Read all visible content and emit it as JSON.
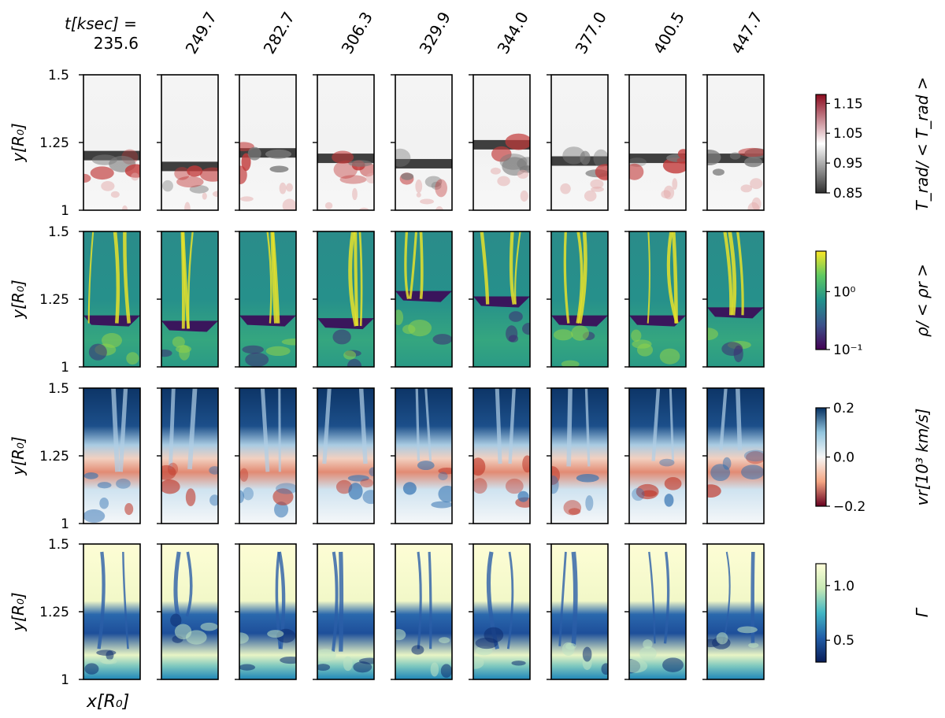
{
  "figure": {
    "time_label": "t[ksec] =",
    "x_axis_label": "x[R₀]",
    "times": [
      "235.6",
      "249.7",
      "282.7",
      "306.3",
      "329.9",
      "344.0",
      "377.0",
      "400.5",
      "447.7"
    ]
  },
  "chart_data": {
    "type": "heatmap",
    "x_label": "x[R₀]",
    "y_label": "y[R₀]",
    "y_ticks": [
      "1",
      "1.25",
      "1.5"
    ],
    "ylim": [
      1,
      1.5
    ],
    "columns_label": "t[ksec] =",
    "columns": [
      235.6,
      249.7,
      282.7,
      306.3,
      329.9,
      344.0,
      377.0,
      400.5,
      447.7
    ],
    "rows": [
      {
        "key": "trad",
        "quantity": "T_rad / <T_rad>",
        "colorbar_label": "T_rad/ < T_rad >",
        "colorbar_ticks": [
          "1.15",
          "1.05",
          "0.95",
          "0.85"
        ],
        "colorbar_range": [
          0.85,
          1.18
        ],
        "colormap": [
          "#303030",
          "#ffffff",
          "#8b0a1e"
        ],
        "front_y": [
          1.19,
          1.15,
          1.2,
          1.18,
          1.16,
          1.23,
          1.17,
          1.18,
          1.18
        ]
      },
      {
        "key": "rho",
        "quantity": "rho / <rho_r>",
        "colorbar_label": "ρ/ < ρr >",
        "colorbar_ticks": [
          "10⁰",
          "10⁻¹"
        ],
        "colorbar_range": [
          0.1,
          5
        ],
        "colorbar_scale": "log",
        "colormap": [
          "#440154",
          "#3b528b",
          "#21918c",
          "#5ec962",
          "#fde725"
        ],
        "front_y": [
          1.19,
          1.17,
          1.19,
          1.18,
          1.28,
          1.26,
          1.19,
          1.19,
          1.22
        ]
      },
      {
        "key": "vr",
        "quantity": "v_r [10^3 km/s]",
        "colorbar_label": "vr[10³ km/s]",
        "colorbar_ticks": [
          "0.2",
          "0.0",
          "−0.2"
        ],
        "colorbar_range": [
          -0.2,
          0.2
        ],
        "colormap": [
          "#67001f",
          "#f4a582",
          "#f7f7f7",
          "#92c5de",
          "#053061"
        ],
        "front_y": [
          1.22,
          1.23,
          1.22,
          1.25,
          1.26,
          1.25,
          1.24,
          1.26,
          1.3
        ]
      },
      {
        "key": "gamma",
        "quantity": "Gamma",
        "colorbar_label": "Γ",
        "colorbar_ticks": [
          "1.0",
          "0.5"
        ],
        "colorbar_range": [
          0.3,
          1.2
        ],
        "colormap": [
          "#081d58",
          "#225ea8",
          "#41b6c4",
          "#c7e9b4",
          "#ffffd9"
        ],
        "front_y": [
          1.2,
          1.32,
          1.2,
          1.19,
          1.2,
          1.2,
          1.21,
          1.22,
          1.22
        ]
      }
    ]
  }
}
